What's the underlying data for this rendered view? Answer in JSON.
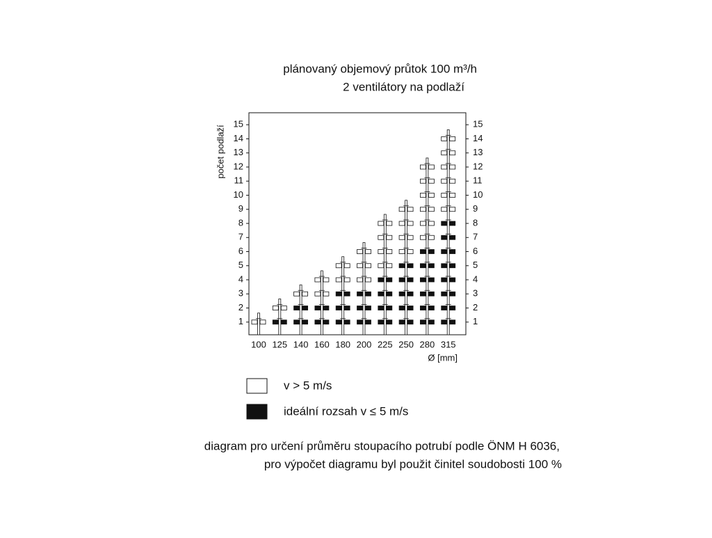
{
  "chart_data": {
    "type": "pipe-matrix",
    "title": "plánovaný objemový průtok 100 m³/h",
    "subtitle": "2 ventilátory na podlaží",
    "y_label": "počet podlaží",
    "x_label": "Ø [mm]",
    "categories": [
      "100",
      "125",
      "140",
      "160",
      "180",
      "200",
      "225",
      "250",
      "280",
      "315"
    ],
    "series": [
      {
        "name": "ideální rozsah v ≤ 5 m/s",
        "color": "#111111",
        "values": [
          0,
          1,
          2,
          2,
          3,
          3,
          4,
          5,
          6,
          8
        ]
      },
      {
        "name": "v > 5 m/s",
        "color": "#ffffff",
        "values": [
          1,
          1,
          1,
          2,
          2,
          3,
          4,
          4,
          6,
          6
        ]
      }
    ],
    "ylim": [
      0.1,
      15.85
    ],
    "yticks": [
      1,
      2,
      3,
      4,
      5,
      6,
      7,
      8,
      9,
      10,
      11,
      12,
      13,
      14,
      15
    ],
    "notes": [
      "diagram pro určení průměru stoupacího potrubí podle ÖNM H 6036,",
      "pro výpočet diagramu byl použit činitel soudobosti 100 %"
    ]
  }
}
